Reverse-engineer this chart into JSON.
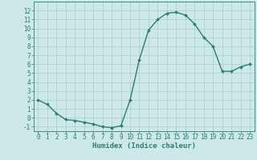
{
  "x": [
    0,
    1,
    2,
    3,
    4,
    5,
    6,
    7,
    8,
    9,
    10,
    11,
    12,
    13,
    14,
    15,
    16,
    17,
    18,
    19,
    20,
    21,
    22,
    23
  ],
  "y": [
    2,
    1.5,
    0.5,
    -0.2,
    -0.3,
    -0.5,
    -0.7,
    -1.0,
    -1.1,
    -0.9,
    2.0,
    6.5,
    9.8,
    11.0,
    11.7,
    11.8,
    11.5,
    10.5,
    9.0,
    8.0,
    5.2,
    5.2,
    5.7,
    6.0
  ],
  "line_color": "#2e7d6e",
  "marker_color": "#2e7d6e",
  "bg_color": "#cce8e8",
  "grid_color": "#aacccc",
  "xlabel": "Humidex (Indice chaleur)",
  "ylim": [
    -1.5,
    13
  ],
  "xlim": [
    -0.5,
    23.5
  ],
  "yticks": [
    -1,
    0,
    1,
    2,
    3,
    4,
    5,
    6,
    7,
    8,
    9,
    10,
    11,
    12
  ],
  "xticks": [
    0,
    1,
    2,
    3,
    4,
    5,
    6,
    7,
    8,
    9,
    10,
    11,
    12,
    13,
    14,
    15,
    16,
    17,
    18,
    19,
    20,
    21,
    22,
    23
  ],
  "font_color": "#2e7d6e",
  "tick_fontsize": 5.5,
  "xlabel_fontsize": 6.5,
  "linewidth": 1.0,
  "markersize": 2.0
}
